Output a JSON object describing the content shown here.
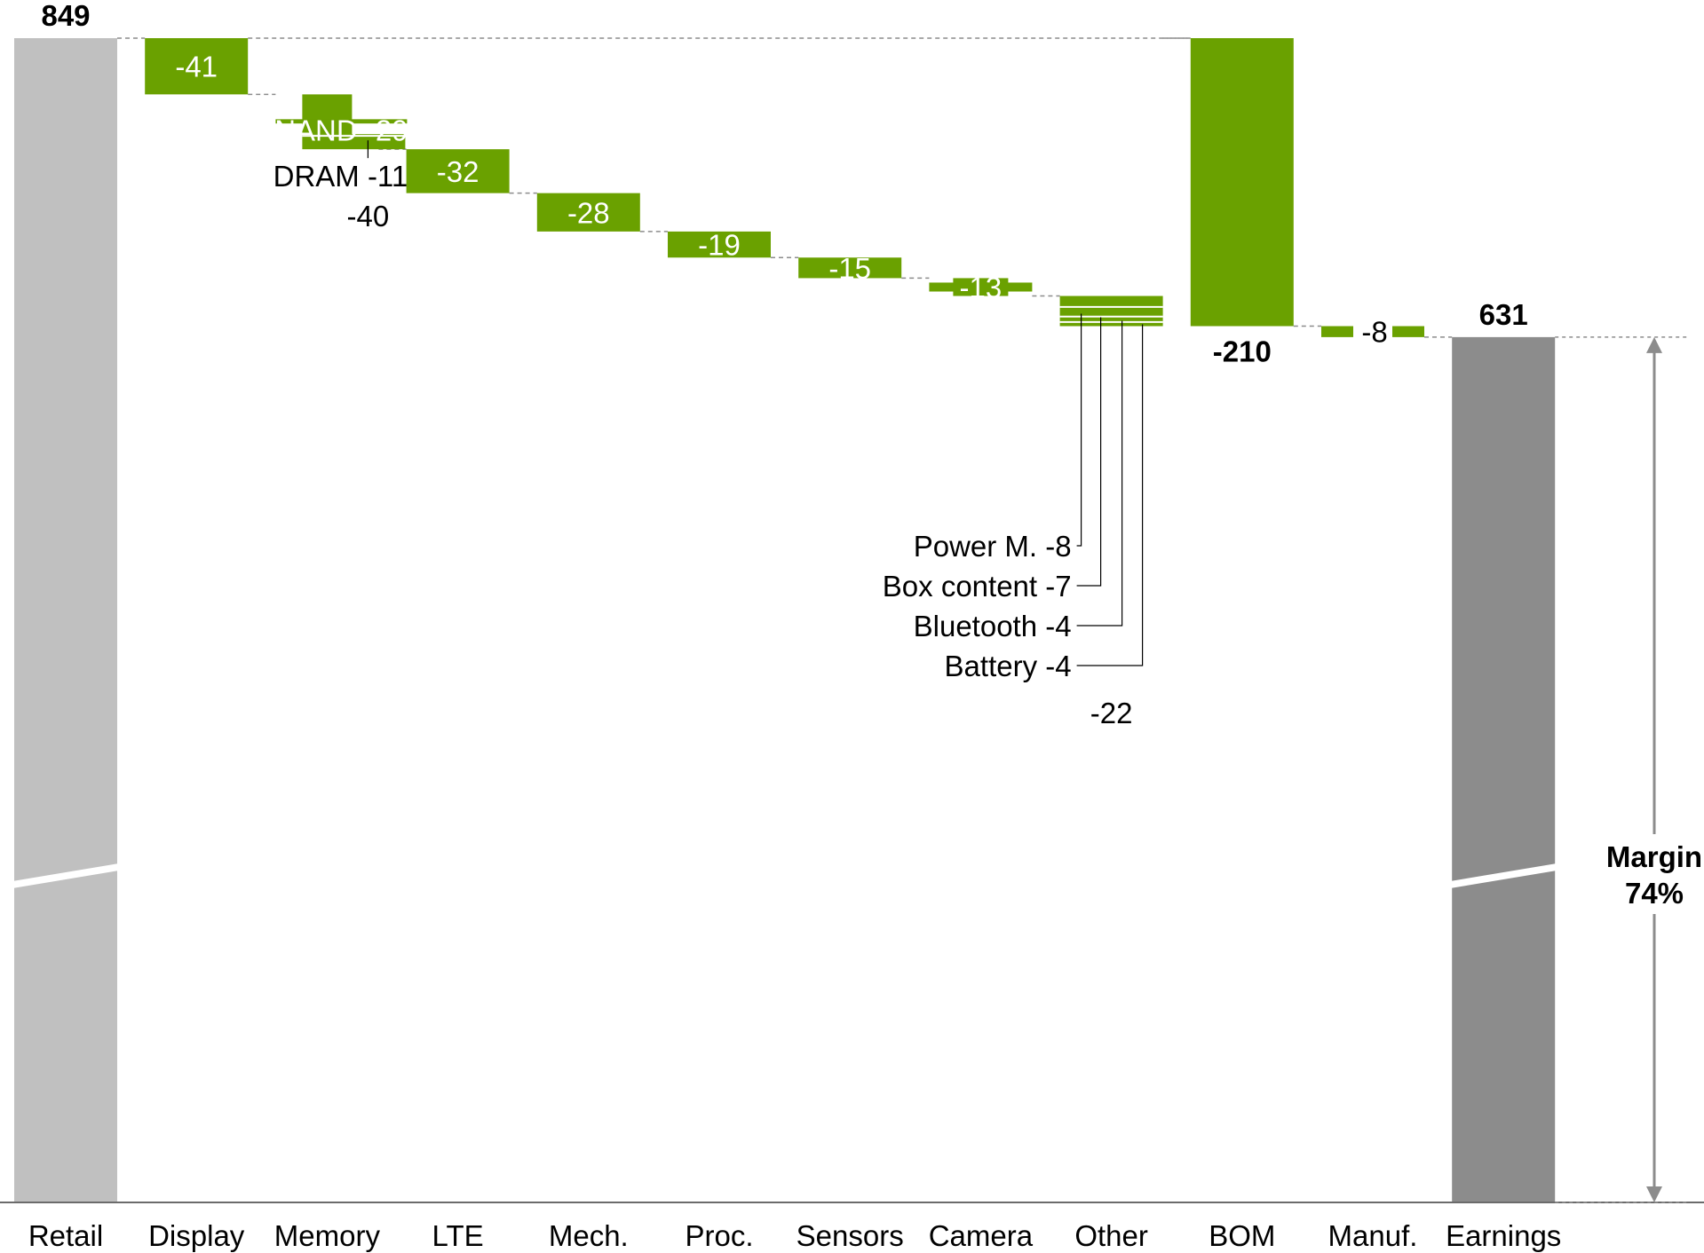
{
  "chart_data": {
    "type": "bar",
    "subtype": "waterfall",
    "title": "",
    "xlabel": "",
    "ylabel": "",
    "ylim": [
      0,
      849
    ],
    "grid": false,
    "legend": "none",
    "colors": {
      "negative": "#6aa100",
      "total_light": "#c0c0c0",
      "total_dark": "#8c8c8c",
      "connector": "#8c8c8c",
      "axis": "#6b6b6b",
      "label_on_bar": "#ffffff",
      "label_off_bar": "#000000"
    },
    "categories": [
      "Retail",
      "Display",
      "Memory",
      "LTE",
      "Mech.",
      "Proc.",
      "Sensors",
      "Camera",
      "Other",
      "BOM",
      "Manuf.",
      "Earnings"
    ],
    "items": [
      {
        "category": "Retail",
        "kind": "total",
        "value": 849,
        "label": "849",
        "broken": true,
        "shade": "light"
      },
      {
        "category": "Display",
        "kind": "delta",
        "value": -41,
        "label": "-41"
      },
      {
        "category": "Memory",
        "kind": "delta",
        "value": -40,
        "label": "-40",
        "segments": [
          {
            "name": "NAND",
            "value": -29,
            "label": "NAND -29"
          },
          {
            "name": "DRAM",
            "value": -11,
            "label": "DRAM -11"
          }
        ]
      },
      {
        "category": "LTE",
        "kind": "delta",
        "value": -32,
        "label": "-32"
      },
      {
        "category": "Mech.",
        "kind": "delta",
        "value": -28,
        "label": "-28"
      },
      {
        "category": "Proc.",
        "kind": "delta",
        "value": -19,
        "label": "-19"
      },
      {
        "category": "Sensors",
        "kind": "delta",
        "value": -15,
        "label": "-15"
      },
      {
        "category": "Camera",
        "kind": "delta",
        "value": -13,
        "label": "-13"
      },
      {
        "category": "Other",
        "kind": "delta",
        "value": -22,
        "label": "-22",
        "segments": [
          {
            "name": "Power M.",
            "value": -8,
            "label": "Power M. -8"
          },
          {
            "name": "Box content",
            "value": -7,
            "label": "Box content -7"
          },
          {
            "name": "Bluetooth",
            "value": -4,
            "label": "Bluetooth -4"
          },
          {
            "name": "Battery",
            "value": -4,
            "label": "Battery -4"
          }
        ]
      },
      {
        "category": "BOM",
        "kind": "span",
        "from": 849,
        "to": 639,
        "value": -210,
        "label": "-210"
      },
      {
        "category": "Manuf.",
        "kind": "delta",
        "value": -8,
        "label": "-8"
      },
      {
        "category": "Earnings",
        "kind": "total",
        "value": 631,
        "label": "631",
        "broken": true,
        "shade": "dark"
      }
    ],
    "annotation": {
      "type": "margin-arrow",
      "line1": "Margin",
      "line2": "74%",
      "from": 0,
      "to": 631
    }
  }
}
